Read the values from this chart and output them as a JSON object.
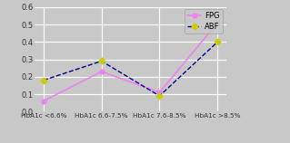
{
  "categories": [
    "HbA1c <6.6%",
    "HbA1c 6.6-7.5%",
    "HbA1c 7.6-8.5%",
    "HbA1c >8.5%"
  ],
  "fpg_values": [
    0.06,
    0.23,
    0.11,
    0.51
  ],
  "abf_values": [
    0.18,
    0.29,
    0.09,
    0.4
  ],
  "fpg_color": "#ee82ee",
  "abf_color": "#00008b",
  "fpg_label": "FPG",
  "abf_label": "ABF",
  "fpg_linestyle": "-",
  "abf_linestyle": "--",
  "ylim": [
    0,
    0.6
  ],
  "yticks": [
    0.0,
    0.1,
    0.2,
    0.3,
    0.4,
    0.5,
    0.6
  ],
  "bg_color": "#c8c8c8",
  "plot_bg_color": "#c8c8c8",
  "grid_color": "#ffffff",
  "legend_facecolor": "#c8c8c8",
  "marker_fpg": "o",
  "marker_abf": "D",
  "marker_size": 3.5
}
